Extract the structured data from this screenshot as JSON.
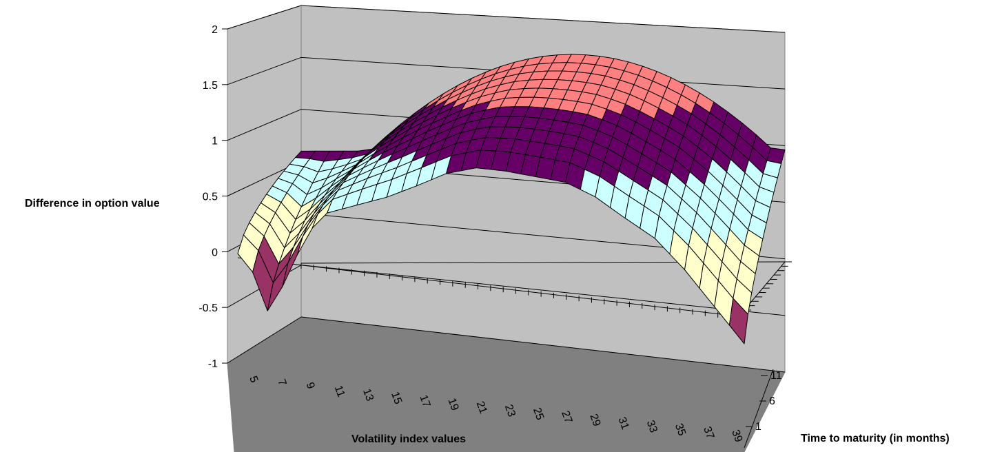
{
  "chart_data": {
    "type": "surface",
    "title": "",
    "zlabel": "Difference in option value",
    "xlabel": "Volatility index values",
    "ylabel": "Time to maturity (in months)",
    "zlim": [
      -1,
      2
    ],
    "z_ticks": [
      "2",
      "1.5",
      "1",
      "0.5",
      "0",
      "-0.5",
      "-1"
    ],
    "x_ticks": [
      "5",
      "7",
      "9",
      "11",
      "13",
      "15",
      "17",
      "19",
      "21",
      "23",
      "25",
      "27",
      "29",
      "31",
      "33",
      "35",
      "37",
      "39"
    ],
    "y_ticks": [
      "1",
      "6",
      "11"
    ],
    "x_range": [
      5,
      39
    ],
    "y_range": [
      1,
      12
    ],
    "grid": true,
    "legend": "none",
    "color_bands": [
      {
        "range": [
          -1,
          -0.5
        ],
        "color": "#9999ff"
      },
      {
        "range": [
          -0.5,
          0
        ],
        "color": "#993366"
      },
      {
        "range": [
          0,
          0.5
        ],
        "color": "#ffffcc"
      },
      {
        "range": [
          0.5,
          1
        ],
        "color": "#ccffff"
      },
      {
        "range": [
          1,
          1.5
        ],
        "color": "#660066"
      },
      {
        "range": [
          1.5,
          2
        ],
        "color": "#ff8080"
      }
    ],
    "front_profile_t1": [
      {
        "x": 5,
        "z": 0.0
      },
      {
        "x": 6,
        "z": -0.15
      },
      {
        "x": 7,
        "z": -0.48
      },
      {
        "x": 8,
        "z": -0.25
      },
      {
        "x": 9,
        "z": 0.05
      },
      {
        "x": 10,
        "z": 0.3
      },
      {
        "x": 11,
        "z": 0.45
      },
      {
        "x": 13,
        "z": 0.55
      },
      {
        "x": 15,
        "z": 0.65
      },
      {
        "x": 17,
        "z": 0.78
      },
      {
        "x": 19,
        "z": 0.92
      },
      {
        "x": 21,
        "z": 1.0
      },
      {
        "x": 23,
        "z": 1.0
      },
      {
        "x": 25,
        "z": 0.98
      },
      {
        "x": 27,
        "z": 0.96
      },
      {
        "x": 29,
        "z": 0.86
      },
      {
        "x": 31,
        "z": 0.7
      },
      {
        "x": 33,
        "z": 0.55
      },
      {
        "x": 35,
        "z": 0.3
      },
      {
        "x": 37,
        "z": 0.0
      },
      {
        "x": 39,
        "z": -0.3
      }
    ],
    "peak_value": 1.95
  }
}
